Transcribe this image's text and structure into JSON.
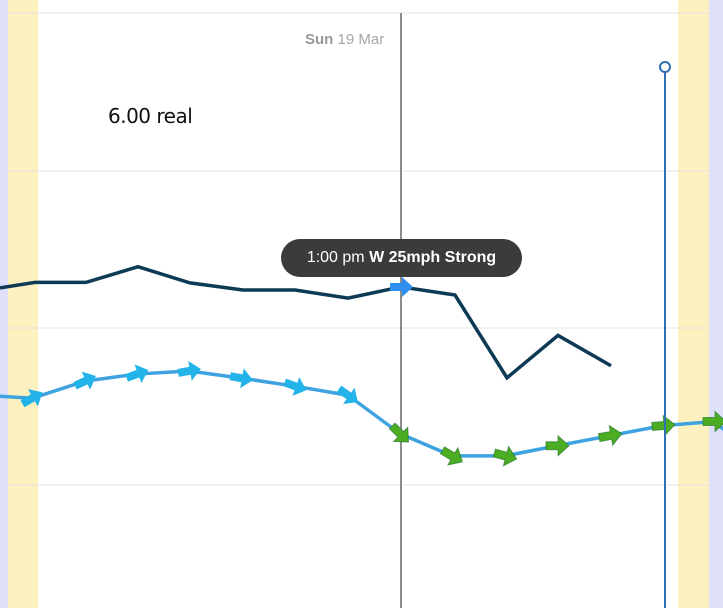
{
  "header": {
    "day_name": "Sun",
    "date": "19 Mar"
  },
  "annotation": {
    "text": "6.00 real"
  },
  "tooltip": {
    "time": "1:00 pm",
    "wind_summary": "W 25mph Strong"
  },
  "colors": {
    "night_band": "#dfe1fb",
    "twilight_band": "#fdf1bf",
    "observed_line": "#0d3a55",
    "forecast_line": "#3fa3e0",
    "arrow_light_wind": "#22b3e8",
    "arrow_strong_wind": "#4cad22",
    "current_time_marker": "#2f6fb3",
    "cursor_line": "#8c8c8c",
    "tooltip_bg": "#3b3b3b"
  },
  "chart_data": {
    "type": "line",
    "title": "",
    "xlabel": "",
    "ylabel": "",
    "grid": true,
    "series": [
      {
        "values": [
          0.5,
          1.05,
          1.05,
          2.6,
          1.0,
          0.3,
          0.3,
          -0.5,
          0.6,
          -0.2,
          -8.4,
          -4.2,
          -7.2
        ]
      },
      {
        "values": [
          -2.8,
          -3.0,
          -1.3,
          -0.6,
          -0.3,
          -1.0,
          -1.8,
          -2.7,
          -6.5,
          -8.7,
          -8.7,
          -7.7,
          -6.7,
          -5.7,
          -5.3,
          -7.4
        ]
      }
    ],
    "wind_arrows": [
      {
        "direction_deg": 60,
        "strength": "light"
      },
      {
        "direction_deg": 65,
        "strength": "light"
      },
      {
        "direction_deg": 70,
        "strength": "light"
      },
      {
        "direction_deg": 80,
        "strength": "light"
      },
      {
        "direction_deg": 100,
        "strength": "light"
      },
      {
        "direction_deg": 110,
        "strength": "light"
      },
      {
        "direction_deg": 125,
        "strength": "light"
      },
      {
        "direction_deg": 135,
        "strength": "strong"
      },
      {
        "direction_deg": 120,
        "strength": "strong"
      },
      {
        "direction_deg": 105,
        "strength": "strong"
      },
      {
        "direction_deg": 90,
        "strength": "strong"
      },
      {
        "direction_deg": 80,
        "strength": "strong"
      },
      {
        "direction_deg": 85,
        "strength": "strong"
      },
      {
        "direction_deg": 90,
        "strength": "strong"
      },
      {
        "direction_deg": 100,
        "strength": "strong"
      }
    ],
    "selected_arrow": {
      "direction_deg": 90,
      "strength": "light"
    }
  }
}
